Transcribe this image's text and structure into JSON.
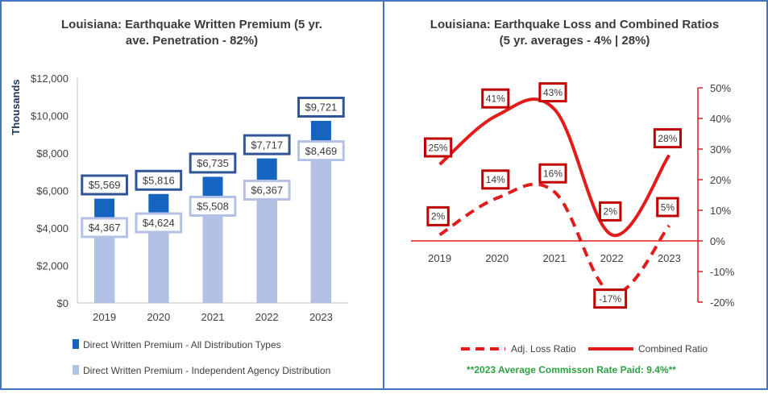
{
  "chart_data": [
    {
      "type": "bar",
      "title": "Louisiana: Earthquake Written Premium (5 yr. ave. Penetration - 82%)",
      "title_lines": [
        "Louisiana: Earthquake Written Premium (5 yr.",
        "ave. Penetration - 82%)"
      ],
      "ylabel": "Thousands",
      "ylim": [
        0,
        12000
      ],
      "yticks": [
        0,
        2000,
        4000,
        6000,
        8000,
        10000,
        12000
      ],
      "ytick_labels": [
        "$0",
        "$2,000",
        "$4,000",
        "$6,000",
        "$8,000",
        "$10,000",
        "$12,000"
      ],
      "categories": [
        "2019",
        "2020",
        "2021",
        "2022",
        "2023"
      ],
      "grid": false,
      "legend_position": "bottom",
      "series": [
        {
          "name": "Direct Written Premium - All Distribution Types",
          "color": "#1565C0",
          "values": [
            5569,
            5816,
            6735,
            7717,
            9721
          ],
          "labels": [
            "$5,569",
            "$5,816",
            "$6,735",
            "$7,717",
            "$9,721"
          ]
        },
        {
          "name": "Direct Written Premium - Independent Agency Distribution",
          "color": "#B4C1E6",
          "values": [
            4367,
            4624,
            5508,
            6367,
            8469
          ],
          "labels": [
            "$4,367",
            "$4,624",
            "$5,508",
            "$6,367",
            "$8,469"
          ]
        }
      ]
    },
    {
      "type": "line",
      "title": "Louisiana: Earthquake Loss and Combined Ratios (5 yr. averages - 4% | 28%)",
      "title_lines": [
        "Louisiana: Earthquake Loss and Combined Ratios",
        "(5 yr. averages - 4% | 28%)"
      ],
      "ylim": [
        -20,
        50
      ],
      "yticks": [
        -20,
        -10,
        0,
        10,
        20,
        30,
        40,
        50
      ],
      "ytick_labels": [
        "-20%",
        "-10%",
        "0%",
        "10%",
        "20%",
        "30%",
        "40%",
        "50%"
      ],
      "y_axis_side": "right",
      "categories": [
        "2019",
        "2020",
        "2021",
        "2022",
        "2023"
      ],
      "grid": false,
      "legend_position": "bottom",
      "series": [
        {
          "name": "Adj. Loss Ratio",
          "style": "dashed",
          "color": "#E31B1B",
          "values": [
            2,
            14,
            16,
            -17,
            5
          ],
          "labels": [
            "2%",
            "14%",
            "16%",
            "-17%",
            "5%"
          ]
        },
        {
          "name": "Combined Ratio",
          "style": "solid",
          "color": "#E31B1B",
          "values": [
            25,
            41,
            43,
            2,
            28
          ],
          "labels": [
            "25%",
            "41%",
            "43%",
            "2%",
            "28%"
          ]
        }
      ],
      "footnote": "**2023 Average Commisson Rate Paid: 9.4%**"
    }
  ]
}
